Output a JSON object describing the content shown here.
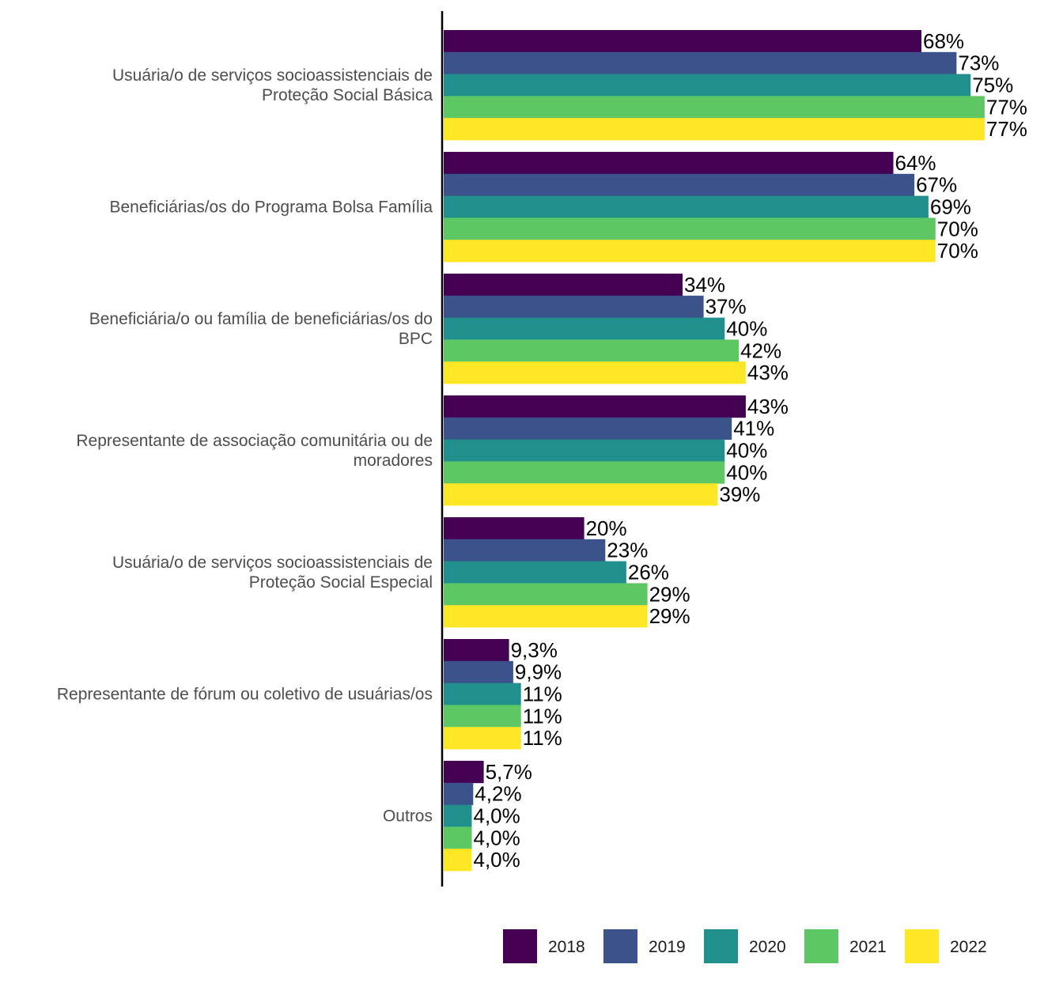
{
  "chart_data": {
    "type": "bar",
    "orientation": "horizontal",
    "title": "",
    "xlabel": "",
    "ylabel": "",
    "xlim": [
      0,
      0.8
    ],
    "grid": false,
    "legend_position": "bottom-right",
    "categories": [
      [
        "Usuária/o de serviços socioassistenciais de",
        "Proteção Social Básica"
      ],
      [
        "Beneficiárias/os do Programa Bolsa Família"
      ],
      [
        "Beneficiária/o ou família de beneficiárias/os do",
        "BPC"
      ],
      [
        "Representante de associação comunitária ou de",
        "moradores"
      ],
      [
        "Usuária/o de serviços socioassistenciais de",
        "Proteção Social Especial"
      ],
      [
        "Representante de fórum ou coletivo de usuárias/os"
      ],
      [
        "Outros"
      ]
    ],
    "series": [
      {
        "name": "2018",
        "color": "#440154",
        "values": [
          0.68,
          0.64,
          0.34,
          0.43,
          0.2,
          0.093,
          0.057
        ],
        "labels": [
          "68%",
          "64%",
          "34%",
          "43%",
          "20%",
          "9,3%",
          "5,7%"
        ]
      },
      {
        "name": "2019",
        "color": "#3b528b",
        "values": [
          0.73,
          0.67,
          0.37,
          0.41,
          0.23,
          0.099,
          0.042
        ],
        "labels": [
          "73%",
          "67%",
          "37%",
          "41%",
          "23%",
          "9,9%",
          "4,2%"
        ]
      },
      {
        "name": "2020",
        "color": "#21908c",
        "values": [
          0.75,
          0.69,
          0.4,
          0.4,
          0.26,
          0.11,
          0.04
        ],
        "labels": [
          "75%",
          "69%",
          "40%",
          "40%",
          "26%",
          "11%",
          "4,0%"
        ]
      },
      {
        "name": "2021",
        "color": "#5dc863",
        "values": [
          0.77,
          0.7,
          0.42,
          0.4,
          0.29,
          0.11,
          0.04
        ],
        "labels": [
          "77%",
          "70%",
          "42%",
          "40%",
          "29%",
          "11%",
          "4,0%"
        ]
      },
      {
        "name": "2022",
        "color": "#fde725",
        "values": [
          0.77,
          0.7,
          0.43,
          0.39,
          0.29,
          0.11,
          0.04
        ],
        "labels": [
          "77%",
          "70%",
          "43%",
          "39%",
          "29%",
          "11%",
          "4,0%"
        ]
      }
    ]
  }
}
